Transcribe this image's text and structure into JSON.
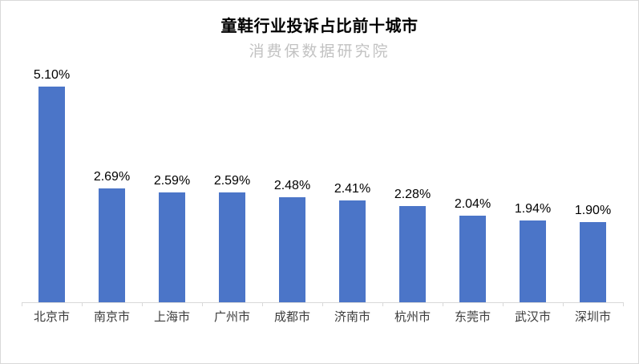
{
  "window": {
    "background_color": "#ffffff",
    "border_color": "#d9d9d9"
  },
  "chart_data": {
    "type": "bar",
    "title": "童鞋行业投诉占比前十城市",
    "subtitle": "消费保数据研究院",
    "categories": [
      "北京市",
      "南京市",
      "上海市",
      "广州市",
      "成都市",
      "济南市",
      "杭州市",
      "东莞市",
      "武汉市",
      "深圳市"
    ],
    "values": [
      5.1,
      2.69,
      2.59,
      2.59,
      2.48,
      2.41,
      2.28,
      2.04,
      1.94,
      1.9
    ],
    "value_labels": [
      "5.10%",
      "2.69%",
      "2.59%",
      "2.59%",
      "2.48%",
      "2.41%",
      "2.28%",
      "2.04%",
      "1.94%",
      "1.90%"
    ],
    "bar_color": "#4b75c8",
    "axis_color": "#d9d9d9",
    "xlabel": "",
    "ylabel": "",
    "ylim": [
      0,
      5.5
    ],
    "grid": false,
    "legend": "none"
  }
}
